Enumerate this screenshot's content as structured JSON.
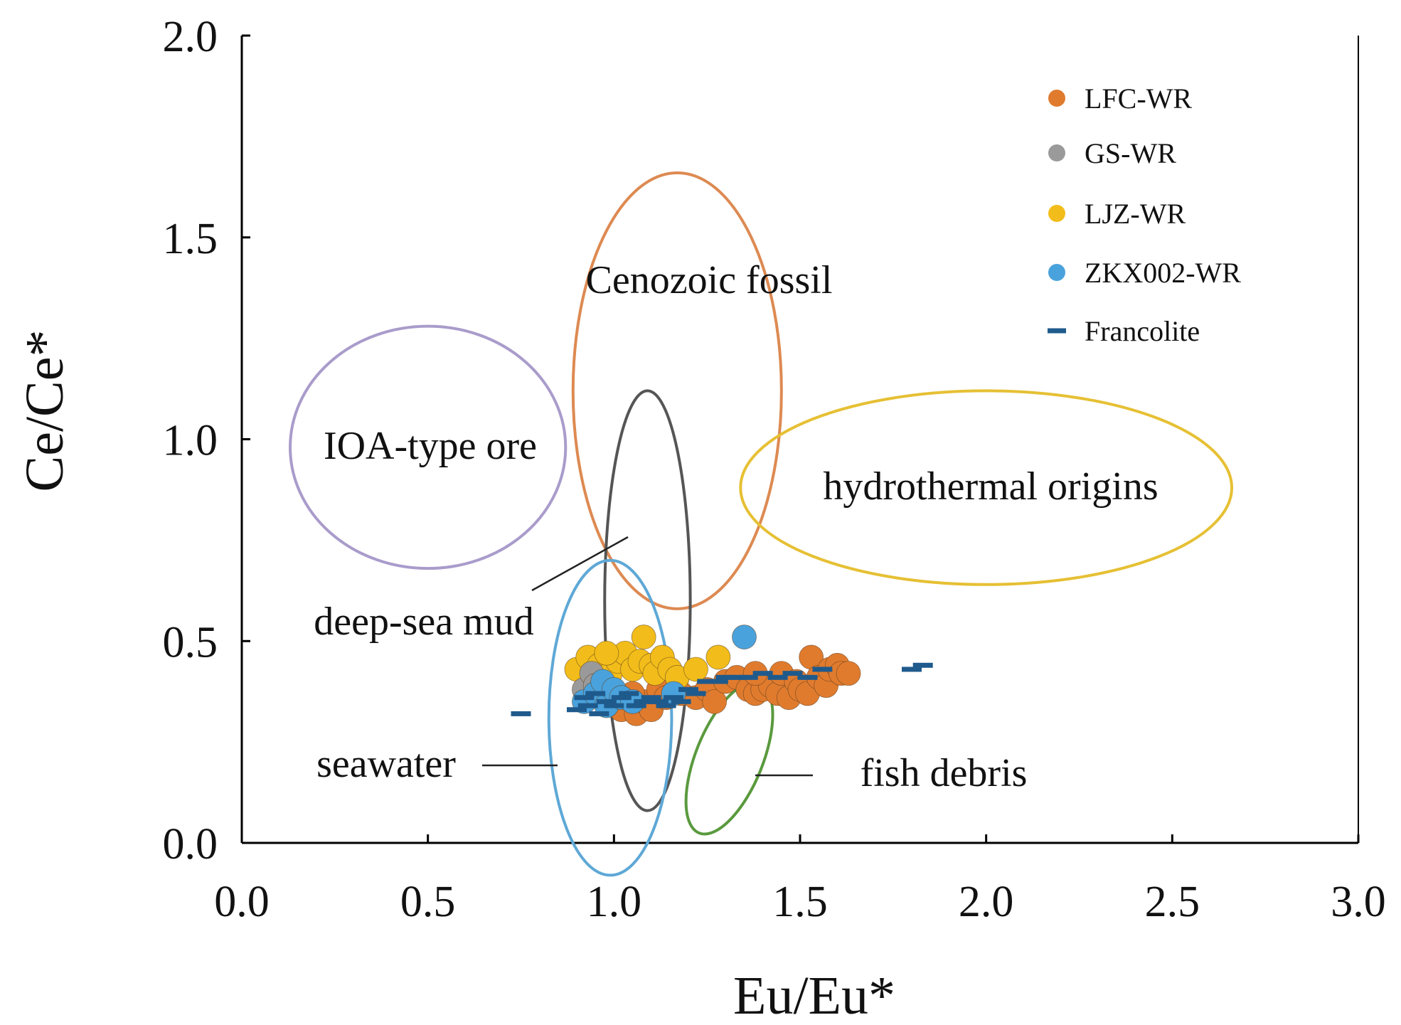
{
  "chart_data": {
    "type": "scatter",
    "xlabel": "Eu/Eu*",
    "ylabel": "Ce/Ce*",
    "xlim": [
      0,
      3
    ],
    "ylim": [
      0,
      2
    ],
    "xticks": [
      "0.0",
      "0.5",
      "1.0",
      "1.5",
      "2.0",
      "2.5",
      "3.0"
    ],
    "yticks": [
      "0.0",
      "0.5",
      "1.0",
      "1.5",
      "2.0"
    ],
    "grid": false,
    "legend_position": "top-right",
    "colors": {
      "lfc": "#e07b2e",
      "gs": "#9a9a9a",
      "ljz": "#f2bd1a",
      "zkx": "#4aa2dc",
      "francolite": "#1f5a8c",
      "ioa": "#a99ccb",
      "cenozoic": "#dd8a52",
      "deepsea": "#555555",
      "seawater": "#5ea8d6",
      "fish": "#5a9a3e",
      "hydrothermal": "#e6c034"
    },
    "legend": [
      {
        "key": "lfc",
        "label": "LFC-WR",
        "marker": "circle"
      },
      {
        "key": "gs",
        "label": "GS-WR",
        "marker": "circle"
      },
      {
        "key": "ljz",
        "label": "LJZ-WR",
        "marker": "circle"
      },
      {
        "key": "zkx",
        "label": "ZKX002-WR",
        "marker": "circle"
      },
      {
        "key": "francolite",
        "label": "Francolite",
        "marker": "dash"
      }
    ],
    "regions": [
      {
        "key": "ioa",
        "label": "IOA-type ore",
        "cx": 0.5,
        "cy": 0.98,
        "rx": 0.37,
        "ry": 0.3
      },
      {
        "key": "cenozoic",
        "label": "Cenozoic fossil",
        "cx": 1.17,
        "cy": 1.12,
        "rx": 0.28,
        "ry": 0.54
      },
      {
        "key": "deepsea",
        "label": "deep-sea mud",
        "cx": 1.09,
        "cy": 0.6,
        "rx": 0.115,
        "ry": 0.52
      },
      {
        "key": "seawater",
        "label": "seawater",
        "cx": 0.99,
        "cy": 0.31,
        "rx": 0.165,
        "ry": 0.39
      },
      {
        "key": "fish",
        "label": "fish debris",
        "cx": 1.31,
        "cy": 0.21,
        "rx": 0.09,
        "ry": 0.2,
        "rotate": 22
      },
      {
        "key": "hydrothermal",
        "label": "hydrothermal origins",
        "cx": 2.0,
        "cy": 0.88,
        "rx": 0.66,
        "ry": 0.24
      }
    ],
    "series": [
      {
        "name": "LFC-WR",
        "key": "lfc",
        "points": [
          [
            1.02,
            0.33
          ],
          [
            1.06,
            0.32
          ],
          [
            1.08,
            0.35
          ],
          [
            1.1,
            0.33
          ],
          [
            1.05,
            0.37
          ],
          [
            1.12,
            0.38
          ],
          [
            1.14,
            0.36
          ],
          [
            1.18,
            0.37
          ],
          [
            1.22,
            0.36
          ],
          [
            1.25,
            0.38
          ],
          [
            1.27,
            0.35
          ],
          [
            1.3,
            0.4
          ],
          [
            1.33,
            0.41
          ],
          [
            1.36,
            0.38
          ],
          [
            1.38,
            0.37
          ],
          [
            1.4,
            0.38
          ],
          [
            1.42,
            0.39
          ],
          [
            1.44,
            0.37
          ],
          [
            1.45,
            0.42
          ],
          [
            1.47,
            0.36
          ],
          [
            1.49,
            0.4
          ],
          [
            1.5,
            0.38
          ],
          [
            1.52,
            0.37
          ],
          [
            1.53,
            0.46
          ],
          [
            1.55,
            0.41
          ],
          [
            1.57,
            0.39
          ],
          [
            1.58,
            0.43
          ],
          [
            1.6,
            0.44
          ],
          [
            1.61,
            0.42
          ],
          [
            1.63,
            0.42
          ],
          [
            1.38,
            0.42
          ]
        ]
      },
      {
        "name": "GS-WR",
        "key": "gs",
        "points": [
          [
            0.92,
            0.38
          ],
          [
            0.94,
            0.42
          ],
          [
            0.95,
            0.39
          ],
          [
            0.97,
            0.36
          ]
        ]
      },
      {
        "name": "LJZ-WR",
        "key": "ljz",
        "points": [
          [
            0.9,
            0.43
          ],
          [
            0.93,
            0.46
          ],
          [
            0.96,
            0.44
          ],
          [
            0.99,
            0.42
          ],
          [
            1.01,
            0.45
          ],
          [
            1.03,
            0.47
          ],
          [
            1.05,
            0.43
          ],
          [
            1.07,
            0.45
          ],
          [
            1.08,
            0.51
          ],
          [
            1.1,
            0.44
          ],
          [
            1.11,
            0.42
          ],
          [
            1.13,
            0.46
          ],
          [
            1.15,
            0.43
          ],
          [
            1.17,
            0.41
          ],
          [
            1.22,
            0.43
          ],
          [
            1.28,
            0.46
          ],
          [
            0.98,
            0.47
          ]
        ]
      },
      {
        "name": "ZKX002-WR",
        "key": "zkx",
        "points": [
          [
            0.92,
            0.35
          ],
          [
            0.95,
            0.37
          ],
          [
            0.97,
            0.4
          ],
          [
            0.98,
            0.34
          ],
          [
            1.0,
            0.38
          ],
          [
            1.02,
            0.36
          ],
          [
            1.05,
            0.35
          ],
          [
            1.16,
            0.37
          ],
          [
            1.35,
            0.51
          ]
        ]
      },
      {
        "name": "Francolite",
        "key": "francolite",
        "points": [
          [
            0.75,
            0.32
          ],
          [
            0.9,
            0.33
          ],
          [
            0.92,
            0.36
          ],
          [
            0.93,
            0.34
          ],
          [
            0.95,
            0.37
          ],
          [
            0.96,
            0.32
          ],
          [
            0.98,
            0.35
          ],
          [
            1.0,
            0.34
          ],
          [
            1.02,
            0.36
          ],
          [
            1.04,
            0.37
          ],
          [
            1.06,
            0.34
          ],
          [
            1.08,
            0.35
          ],
          [
            1.1,
            0.36
          ],
          [
            1.12,
            0.35
          ],
          [
            1.14,
            0.34
          ],
          [
            1.16,
            0.36
          ],
          [
            1.18,
            0.35
          ],
          [
            1.2,
            0.38
          ],
          [
            1.22,
            0.37
          ],
          [
            1.25,
            0.4
          ],
          [
            1.28,
            0.4
          ],
          [
            1.3,
            0.41
          ],
          [
            1.33,
            0.41
          ],
          [
            1.36,
            0.41
          ],
          [
            1.4,
            0.42
          ],
          [
            1.44,
            0.41
          ],
          [
            1.48,
            0.42
          ],
          [
            1.52,
            0.41
          ],
          [
            1.56,
            0.43
          ],
          [
            1.8,
            0.43
          ],
          [
            1.83,
            0.44
          ]
        ]
      }
    ]
  }
}
